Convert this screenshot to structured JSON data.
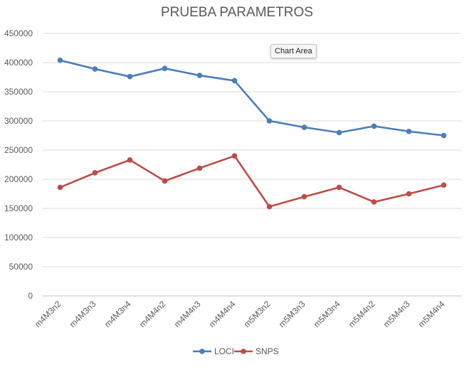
{
  "chart_data": {
    "type": "line",
    "title": "PRUEBA PARAMETROS",
    "categories": [
      "m4M3n2",
      "m4M3n3",
      "m4M3n4",
      "m4M4n2",
      "m4M4n3",
      "m4M4n4",
      "m5M3n2",
      "m5M3n3",
      "m5M3n4",
      "m5M4n2",
      "m5M4n3",
      "m5M4n4"
    ],
    "series": [
      {
        "name": "LOCI",
        "color": "#4a7ebb",
        "values": [
          404000,
          389000,
          376000,
          390000,
          378000,
          369000,
          300000,
          289000,
          280000,
          291000,
          282000,
          275000
        ]
      },
      {
        "name": "SNPS",
        "color": "#be4b48",
        "values": [
          186000,
          211000,
          233000,
          197000,
          219000,
          240000,
          153000,
          170000,
          186000,
          161000,
          175000,
          190000
        ]
      }
    ],
    "ylim": [
      0,
      450000
    ],
    "yticks": [
      "0",
      "50000",
      "100000",
      "150000",
      "200000",
      "250000",
      "300000",
      "350000",
      "400000",
      "450000"
    ],
    "grid": true,
    "legend": "bottom"
  },
  "tooltip": {
    "label": "Chart Area"
  }
}
